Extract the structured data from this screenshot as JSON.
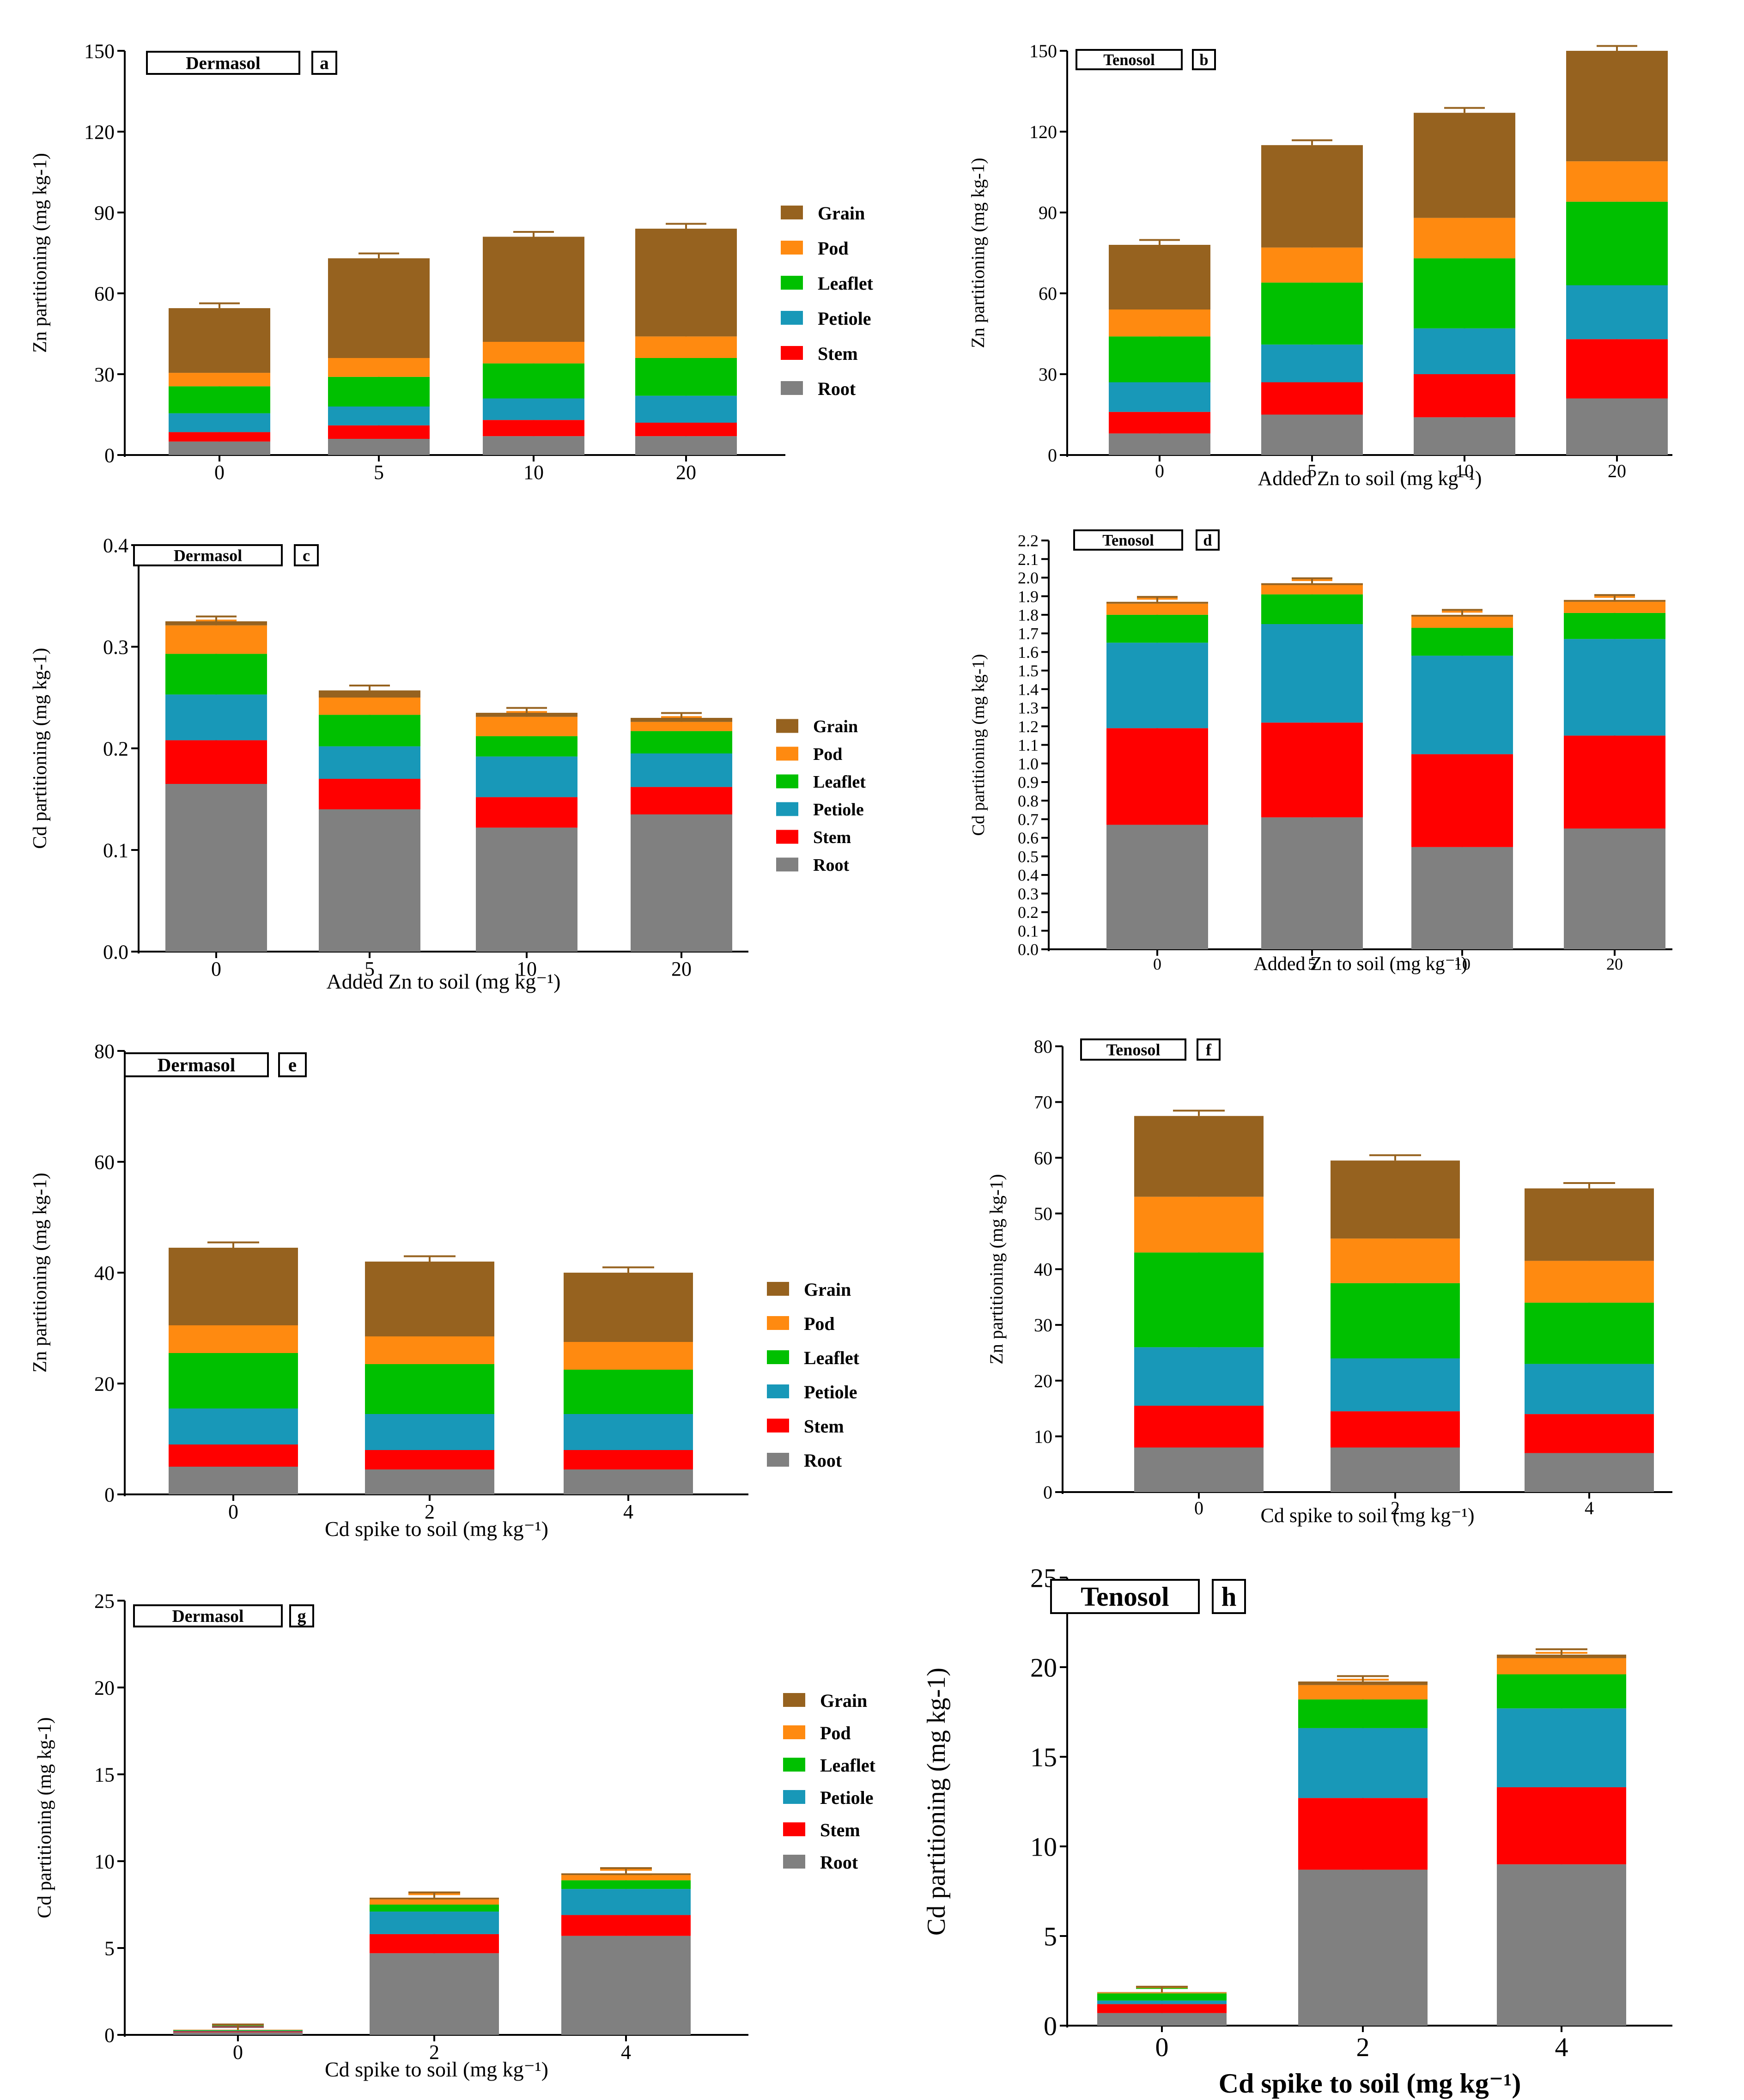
{
  "colors": {
    "Grain": "#96621F",
    "Pod": "#FF8A10",
    "Leaflet": "#00C000",
    "Petiole": "#1898B8",
    "Stem": "#FF0000",
    "Root": "#808080"
  },
  "legend_items": [
    "Grain",
    "Pod",
    "Leaflet",
    "Petiole",
    "Stem",
    "Root"
  ],
  "chart_data": [
    {
      "panel": "a",
      "soil": "Dermasol",
      "type": "bar",
      "stacked": true,
      "xlabel": "",
      "ylabel": "Zn partitioning (mg kg-1)",
      "ylim": [
        0,
        150
      ],
      "yticks": [
        0,
        30,
        60,
        90,
        120,
        150
      ],
      "categories": [
        "0",
        "5",
        "10",
        "20"
      ],
      "legend": "right",
      "series": [
        {
          "name": "Root",
          "values": [
            5,
            6,
            7,
            7
          ]
        },
        {
          "name": "Stem",
          "values": [
            3.5,
            5,
            6,
            5
          ]
        },
        {
          "name": "Petiole",
          "values": [
            7,
            7,
            8,
            10
          ]
        },
        {
          "name": "Leaflet",
          "values": [
            10,
            11,
            13,
            14
          ]
        },
        {
          "name": "Pod",
          "values": [
            5,
            7,
            8,
            8
          ]
        },
        {
          "name": "Grain",
          "values": [
            24,
            37,
            39,
            40
          ]
        }
      ]
    },
    {
      "panel": "b",
      "soil": "Tenosol",
      "type": "bar",
      "stacked": true,
      "xlabel": "Added Zn to soil (mg kg⁻¹)",
      "ylabel": "Zn partitioning (mg kg-1)",
      "ylim": [
        0,
        150
      ],
      "yticks": [
        0,
        30,
        60,
        90,
        120,
        150
      ],
      "categories": [
        "0",
        "5",
        "10",
        "20"
      ],
      "series": [
        {
          "name": "Root",
          "values": [
            8,
            15,
            14,
            21
          ]
        },
        {
          "name": "Stem",
          "values": [
            8,
            12,
            16,
            22
          ]
        },
        {
          "name": "Petiole",
          "values": [
            11,
            14,
            17,
            20
          ]
        },
        {
          "name": "Leaflet",
          "values": [
            17,
            23,
            26,
            31
          ]
        },
        {
          "name": "Pod",
          "values": [
            10,
            13,
            15,
            15
          ]
        },
        {
          "name": "Grain",
          "values": [
            24,
            38,
            39,
            41
          ]
        }
      ]
    },
    {
      "panel": "c",
      "soil": "Dermasol",
      "type": "bar",
      "stacked": true,
      "xlabel": "Added Zn to soil (mg kg⁻¹)",
      "ylabel": "Cd partitioning (mg kg-1)",
      "ylim": [
        0,
        0.4
      ],
      "yticks": [
        "0.0",
        "0.1",
        "0.2",
        "0.3",
        "0.4"
      ],
      "categories": [
        "0",
        "5",
        "10",
        "20"
      ],
      "legend": "right",
      "series": [
        {
          "name": "Root",
          "values": [
            0.165,
            0.14,
            0.122,
            0.135
          ]
        },
        {
          "name": "Stem",
          "values": [
            0.043,
            0.03,
            0.03,
            0.027
          ]
        },
        {
          "name": "Petiole",
          "values": [
            0.045,
            0.032,
            0.04,
            0.033
          ]
        },
        {
          "name": "Leaflet",
          "values": [
            0.04,
            0.031,
            0.02,
            0.022
          ]
        },
        {
          "name": "Pod",
          "values": [
            0.028,
            0.017,
            0.019,
            0.009
          ]
        },
        {
          "name": "Grain",
          "values": [
            0.004,
            0.007,
            0.004,
            0.004
          ]
        }
      ]
    },
    {
      "panel": "d",
      "soil": "Tenosol",
      "type": "bar",
      "stacked": true,
      "xlabel": "Added Zn to soil (mg kg⁻¹)",
      "ylabel": "Cd partitioning (mg kg-1)",
      "ylim": [
        0,
        2.2
      ],
      "yticks": [
        "0.0",
        "0.1",
        "0.2",
        "0.3",
        "0.4",
        "0.5",
        "0.6",
        "0.7",
        "0.8",
        "0.9",
        "1.0",
        "1.1",
        "1.2",
        "1.3",
        "1.4",
        "1.5",
        "1.6",
        "1.7",
        "1.8",
        "1.9",
        "2.0",
        "2.1",
        "2.2"
      ],
      "categories": [
        "0",
        "5",
        "10",
        "20"
      ],
      "series": [
        {
          "name": "Root",
          "values": [
            0.67,
            0.71,
            0.55,
            0.65
          ]
        },
        {
          "name": "Stem",
          "values": [
            0.52,
            0.51,
            0.5,
            0.5
          ]
        },
        {
          "name": "Petiole",
          "values": [
            0.46,
            0.53,
            0.53,
            0.52
          ]
        },
        {
          "name": "Leaflet",
          "values": [
            0.15,
            0.16,
            0.15,
            0.14
          ]
        },
        {
          "name": "Pod",
          "values": [
            0.06,
            0.05,
            0.06,
            0.06
          ]
        },
        {
          "name": "Grain",
          "values": [
            0.01,
            0.01,
            0.01,
            0.01
          ]
        }
      ]
    },
    {
      "panel": "e",
      "soil": "Dermasol",
      "type": "bar",
      "stacked": true,
      "xlabel": "Cd spike to soil (mg kg⁻¹)",
      "ylabel": "Zn partitioning (mg kg-1)",
      "ylim": [
        0,
        80
      ],
      "yticks": [
        0,
        20,
        40,
        60,
        80
      ],
      "categories": [
        "0",
        "2",
        "4"
      ],
      "legend": "right",
      "series": [
        {
          "name": "Root",
          "values": [
            5,
            4.5,
            4.5
          ]
        },
        {
          "name": "Stem",
          "values": [
            4,
            3.5,
            3.5
          ]
        },
        {
          "name": "Petiole",
          "values": [
            6.5,
            6.5,
            6.5
          ]
        },
        {
          "name": "Leaflet",
          "values": [
            10,
            9,
            8
          ]
        },
        {
          "name": "Pod",
          "values": [
            5,
            5,
            5
          ]
        },
        {
          "name": "Grain",
          "values": [
            14,
            13.5,
            12.5
          ]
        }
      ]
    },
    {
      "panel": "f",
      "soil": "Tenosol",
      "type": "bar",
      "stacked": true,
      "xlabel": "Cd spike to soil (mg kg⁻¹)",
      "ylabel": "Zn partitioning (mg kg-1)",
      "ylim": [
        0,
        80
      ],
      "yticks": [
        0,
        10,
        20,
        30,
        40,
        50,
        60,
        70,
        80
      ],
      "categories": [
        "0",
        "2",
        "4"
      ],
      "series": [
        {
          "name": "Root",
          "values": [
            8,
            8,
            7
          ]
        },
        {
          "name": "Stem",
          "values": [
            7.5,
            6.5,
            7
          ]
        },
        {
          "name": "Petiole",
          "values": [
            10.5,
            9.5,
            9
          ]
        },
        {
          "name": "Leaflet",
          "values": [
            17,
            13.5,
            11
          ]
        },
        {
          "name": "Pod",
          "values": [
            10,
            8,
            7.5
          ]
        },
        {
          "name": "Grain",
          "values": [
            14.5,
            14,
            13
          ]
        }
      ]
    },
    {
      "panel": "g",
      "soil": "Dermasol",
      "type": "bar",
      "stacked": true,
      "xlabel": "Cd spike to soil (mg kg⁻¹)",
      "ylabel": "Cd partitioning (mg kg-1)",
      "ylim": [
        0,
        25
      ],
      "yticks": [
        0,
        5,
        10,
        15,
        20,
        25
      ],
      "categories": [
        "0",
        "2",
        "4"
      ],
      "legend": "right",
      "series": [
        {
          "name": "Root",
          "values": [
            0.15,
            4.7,
            5.7
          ]
        },
        {
          "name": "Stem",
          "values": [
            0.05,
            1.1,
            1.2
          ]
        },
        {
          "name": "Petiole",
          "values": [
            0.04,
            1.3,
            1.5
          ]
        },
        {
          "name": "Leaflet",
          "values": [
            0.03,
            0.4,
            0.5
          ]
        },
        {
          "name": "Pod",
          "values": [
            0.02,
            0.3,
            0.3
          ]
        },
        {
          "name": "Grain",
          "values": [
            0.01,
            0.1,
            0.1
          ]
        }
      ]
    },
    {
      "panel": "h",
      "soil": "Tenosol",
      "type": "bar",
      "stacked": true,
      "xlabel": "Cd spike to soil (mg kg⁻¹)",
      "ylabel": "Cd partitioning (mg kg-1)",
      "ylim": [
        0,
        25
      ],
      "yticks": [
        0,
        5,
        10,
        15,
        20,
        25
      ],
      "categories": [
        "0",
        "2",
        "4"
      ],
      "series": [
        {
          "name": "Root",
          "values": [
            0.7,
            8.7,
            9.0
          ]
        },
        {
          "name": "Stem",
          "values": [
            0.5,
            4.0,
            4.3
          ]
        },
        {
          "name": "Petiole",
          "values": [
            0.2,
            3.9,
            4.4
          ]
        },
        {
          "name": "Leaflet",
          "values": [
            0.4,
            1.6,
            1.9
          ]
        },
        {
          "name": "Pod",
          "values": [
            0.05,
            0.8,
            0.9
          ]
        },
        {
          "name": "Grain",
          "values": [
            0.02,
            0.2,
            0.2
          ]
        }
      ]
    }
  ]
}
